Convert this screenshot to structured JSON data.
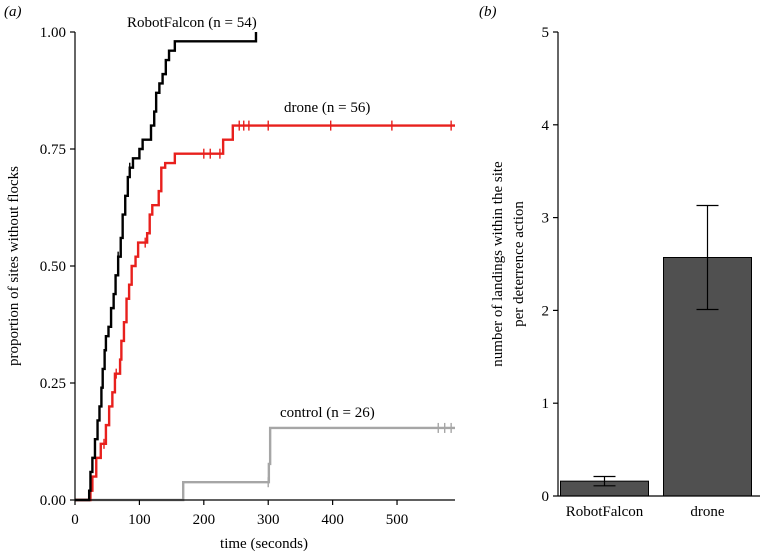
{
  "chart_data": [
    {
      "type": "line",
      "panel_label": "(a)",
      "xlabel": "time (seconds)",
      "ylabel": "proportion of sites without flocks",
      "xlim": [
        0,
        590
      ],
      "ylim": [
        0,
        1
      ],
      "xticks": [
        0,
        100,
        200,
        300,
        400,
        500
      ],
      "yticks": [
        0.0,
        0.25,
        0.5,
        0.75,
        1.0
      ],
      "ytick_labels": [
        "0.00",
        "0.25",
        "0.50",
        "0.75",
        "1.00"
      ],
      "xtick_labels": [
        "0",
        "100",
        "200",
        "300",
        "400",
        "500"
      ],
      "grid": false,
      "series": [
        {
          "name": "RobotFalcon",
          "label_text": "RobotFalcon",
          "n_text": "(n = 54)",
          "color": "#000000",
          "steps": [
            [
              0,
              0
            ],
            [
              20,
              0
            ],
            [
              22,
              0.02
            ],
            [
              24,
              0.06
            ],
            [
              27,
              0.09
            ],
            [
              31,
              0.13
            ],
            [
              35,
              0.17
            ],
            [
              38,
              0.2
            ],
            [
              41,
              0.24
            ],
            [
              43,
              0.28
            ],
            [
              46,
              0.32
            ],
            [
              48,
              0.35
            ],
            [
              52,
              0.37
            ],
            [
              56,
              0.41
            ],
            [
              60,
              0.44
            ],
            [
              63,
              0.48
            ],
            [
              67,
              0.52
            ],
            [
              71,
              0.56
            ],
            [
              74,
              0.61
            ],
            [
              78,
              0.65
            ],
            [
              82,
              0.69
            ],
            [
              85,
              0.71
            ],
            [
              90,
              0.73
            ],
            [
              100,
              0.75
            ],
            [
              105,
              0.77
            ],
            [
              118,
              0.8
            ],
            [
              123,
              0.83
            ],
            [
              126,
              0.87
            ],
            [
              131,
              0.89
            ],
            [
              136,
              0.91
            ],
            [
              141,
              0.94
            ],
            [
              146,
              0.96
            ],
            [
              155,
              0.98
            ],
            [
              186,
              0.98
            ],
            [
              281,
              1.0
            ]
          ],
          "censored": [
            [
              67,
              0.52
            ],
            [
              85,
              0.71
            ]
          ]
        },
        {
          "name": "drone",
          "label_text": "drone",
          "n_text": "(n = 56)",
          "color": "#e8201d",
          "steps": [
            [
              0,
              0
            ],
            [
              22,
              0
            ],
            [
              24,
              0.02
            ],
            [
              27,
              0.05
            ],
            [
              33,
              0.09
            ],
            [
              40,
              0.12
            ],
            [
              48,
              0.16
            ],
            [
              53,
              0.2
            ],
            [
              58,
              0.23
            ],
            [
              62,
              0.27
            ],
            [
              70,
              0.3
            ],
            [
              72,
              0.34
            ],
            [
              76,
              0.38
            ],
            [
              80,
              0.43
            ],
            [
              84,
              0.46
            ],
            [
              88,
              0.5
            ],
            [
              94,
              0.52
            ],
            [
              98,
              0.55
            ],
            [
              112,
              0.57
            ],
            [
              116,
              0.61
            ],
            [
              120,
              0.63
            ],
            [
              130,
              0.66
            ],
            [
              134,
              0.71
            ],
            [
              140,
              0.72
            ],
            [
              145,
              0.72
            ],
            [
              155,
              0.74
            ],
            [
              190,
              0.74
            ],
            [
              230,
              0.77
            ],
            [
              245,
              0.8
            ],
            [
              590,
              0.8
            ]
          ],
          "censored": [
            [
              45,
              0.12
            ],
            [
              64,
              0.27
            ],
            [
              109,
              0.55
            ],
            [
              200,
              0.74
            ],
            [
              210,
              0.74
            ],
            [
              225,
              0.74
            ],
            [
              255,
              0.8
            ],
            [
              262,
              0.8
            ],
            [
              270,
              0.8
            ],
            [
              300,
              0.8
            ],
            [
              397,
              0.8
            ],
            [
              492,
              0.8
            ],
            [
              584,
              0.8
            ]
          ]
        },
        {
          "name": "control",
          "label_text": "control",
          "n_text": "(n = 26)",
          "color": "#a6a6a6",
          "steps": [
            [
              0,
              0
            ],
            [
              168,
              0
            ],
            [
              168,
              0.038
            ],
            [
              300,
              0.038
            ],
            [
              301,
              0.077
            ],
            [
              303,
              0.154
            ],
            [
              590,
              0.154
            ]
          ],
          "censored": [
            [
              300,
              0.038
            ],
            [
              564,
              0.154
            ],
            [
              574,
              0.154
            ],
            [
              584,
              0.154
            ]
          ]
        }
      ]
    },
    {
      "type": "bar",
      "panel_label": "(b)",
      "ylabel_line1": "number of landings within the site",
      "ylabel_line2": "per deterrence action",
      "ylim": [
        0,
        5
      ],
      "yticks": [
        0,
        1,
        2,
        3,
        4,
        5
      ],
      "ytick_labels": [
        "0",
        "1",
        "2",
        "3",
        "4",
        "5"
      ],
      "categories": [
        "RobotFalcon",
        "drone"
      ],
      "values": [
        0.16,
        2.57
      ],
      "errors": [
        [
          0.11,
          0.21
        ],
        [
          2.01,
          3.13
        ]
      ],
      "bar_color": "#505050"
    }
  ]
}
